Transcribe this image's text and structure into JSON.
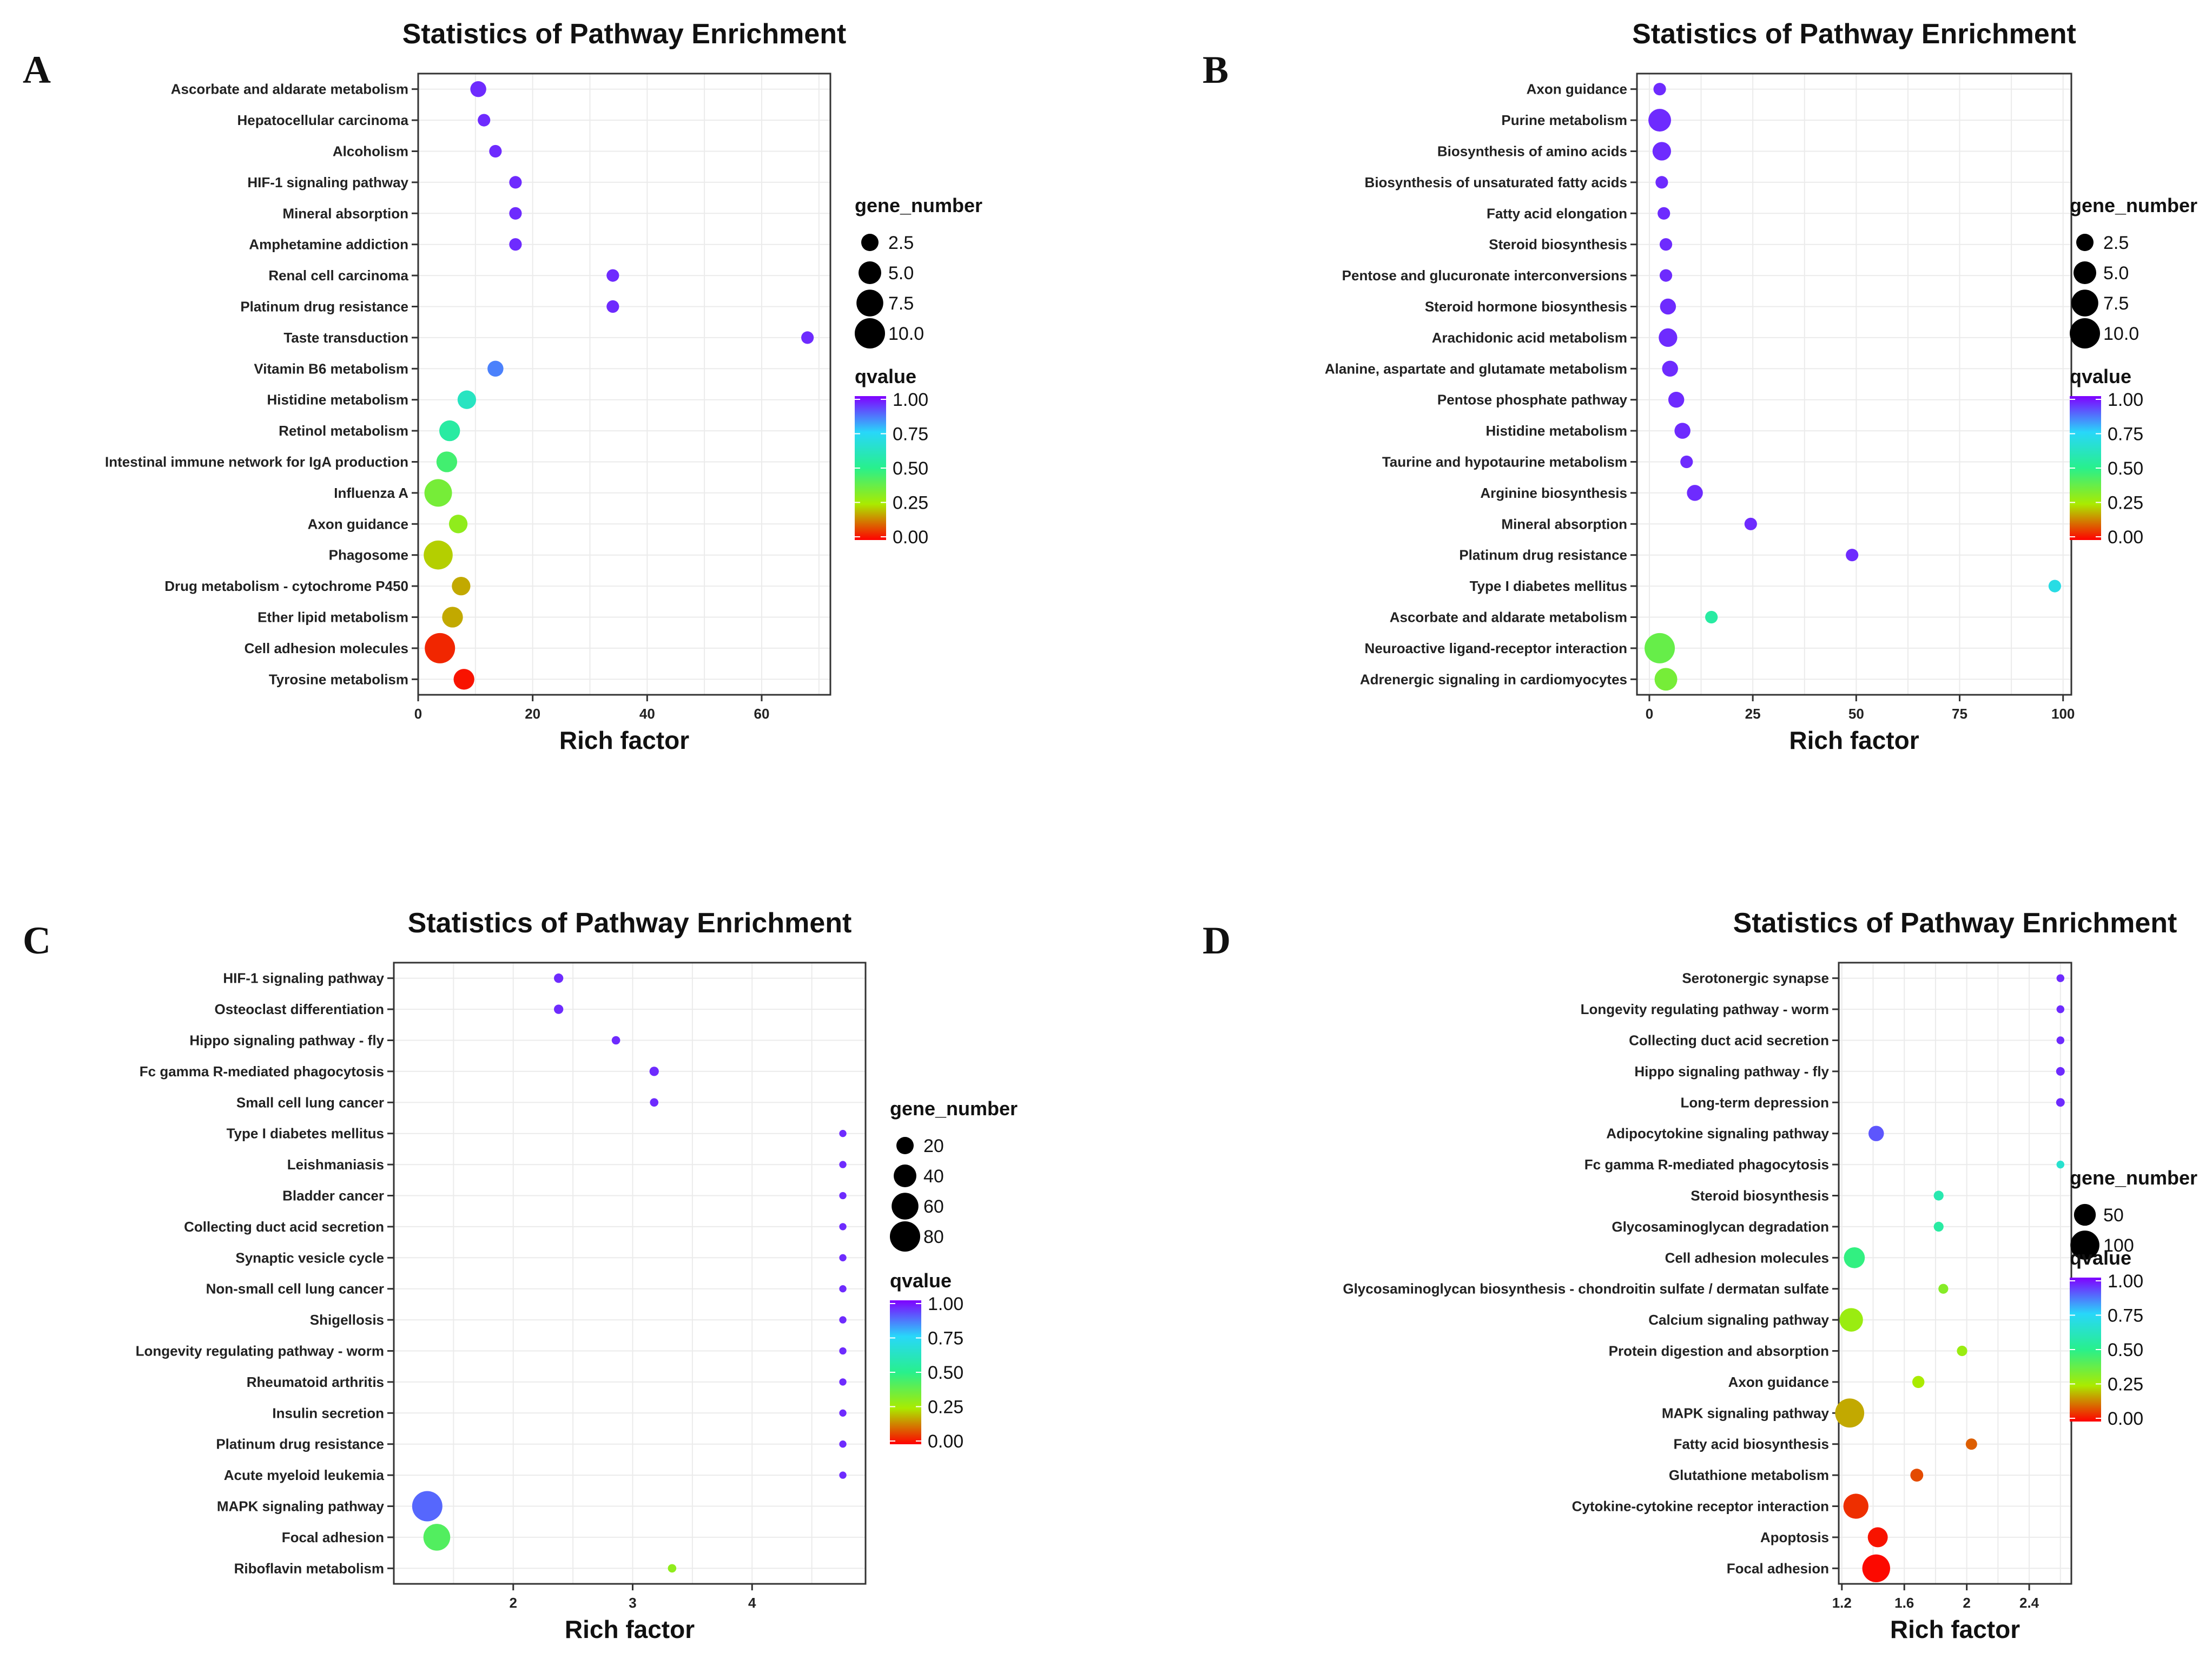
{
  "chart_data": [
    {
      "panel": "A",
      "type": "scatter",
      "title": "Statistics of Pathway Enrichment",
      "xlabel": "Rich factor",
      "ylabel": "",
      "xlim": [
        0,
        72
      ],
      "xticks": [
        0,
        20,
        40,
        60
      ],
      "size_legend_title": "gene_number",
      "size_legend": [
        2.5,
        5.0,
        7.5,
        10.0
      ],
      "size_legend_labels": [
        "2.5",
        "5.0",
        "7.5",
        "10.0"
      ],
      "size_max": 10,
      "color_legend_title": "qvalue",
      "color_legend_labels": [
        "1.00",
        "0.75",
        "0.50",
        "0.25",
        "0.00"
      ],
      "grid": true,
      "points": [
        {
          "pathway": "Ascorbate and aldarate metabolism",
          "rich_factor": 10.5,
          "gene_number": 2,
          "qvalue": 0.95
        },
        {
          "pathway": "Hepatocellular carcinoma",
          "rich_factor": 11.5,
          "gene_number": 1,
          "qvalue": 0.95
        },
        {
          "pathway": "Alcoholism",
          "rich_factor": 13.5,
          "gene_number": 1,
          "qvalue": 0.95
        },
        {
          "pathway": "HIF-1 signaling pathway",
          "rich_factor": 17.0,
          "gene_number": 1,
          "qvalue": 0.95
        },
        {
          "pathway": "Mineral absorption",
          "rich_factor": 17.0,
          "gene_number": 1,
          "qvalue": 0.95
        },
        {
          "pathway": "Amphetamine addiction",
          "rich_factor": 17.0,
          "gene_number": 1,
          "qvalue": 0.95
        },
        {
          "pathway": "Renal cell carcinoma",
          "rich_factor": 34.0,
          "gene_number": 1,
          "qvalue": 0.95
        },
        {
          "pathway": "Platinum drug resistance",
          "rich_factor": 34.0,
          "gene_number": 1,
          "qvalue": 0.95
        },
        {
          "pathway": "Taste transduction",
          "rich_factor": 68.0,
          "gene_number": 1,
          "qvalue": 0.95
        },
        {
          "pathway": "Vitamin B6 metabolism",
          "rich_factor": 13.5,
          "gene_number": 2,
          "qvalue": 0.85
        },
        {
          "pathway": "Histidine metabolism",
          "rich_factor": 8.5,
          "gene_number": 3,
          "qvalue": 0.62
        },
        {
          "pathway": "Retinol metabolism",
          "rich_factor": 5.5,
          "gene_number": 4,
          "qvalue": 0.55
        },
        {
          "pathway": "Intestinal immune network for IgA production",
          "rich_factor": 5.0,
          "gene_number": 4,
          "qvalue": 0.45
        },
        {
          "pathway": "Influenza A",
          "rich_factor": 3.5,
          "gene_number": 8,
          "qvalue": 0.35
        },
        {
          "pathway": "Axon guidance",
          "rich_factor": 7.0,
          "gene_number": 3,
          "qvalue": 0.3
        },
        {
          "pathway": "Phagosome",
          "rich_factor": 3.5,
          "gene_number": 9,
          "qvalue": 0.22
        },
        {
          "pathway": "Drug metabolism - cytochrome P450",
          "rich_factor": 7.5,
          "gene_number": 3,
          "qvalue": 0.18
        },
        {
          "pathway": "Ether lipid metabolism",
          "rich_factor": 6.0,
          "gene_number": 4,
          "qvalue": 0.18
        },
        {
          "pathway": "Cell adhesion molecules",
          "rich_factor": 3.8,
          "gene_number": 10,
          "qvalue": 0.04
        },
        {
          "pathway": "Tyrosine metabolism",
          "rich_factor": 8.0,
          "gene_number": 4,
          "qvalue": 0.02
        }
      ]
    },
    {
      "panel": "B",
      "type": "scatter",
      "title": "Statistics of Pathway Enrichment",
      "xlabel": "Rich factor",
      "ylabel": "",
      "xlim": [
        -3,
        102
      ],
      "xticks": [
        0,
        25,
        50,
        75,
        100
      ],
      "size_legend_title": "gene_number",
      "size_legend": [
        2.5,
        5.0,
        7.5,
        10.0
      ],
      "size_legend_labels": [
        "2.5",
        "5.0",
        "7.5",
        "10.0"
      ],
      "size_max": 10,
      "color_legend_title": "qvalue",
      "color_legend_labels": [
        "1.00",
        "0.75",
        "0.50",
        "0.25",
        "0.00"
      ],
      "grid": true,
      "points": [
        {
          "pathway": "Axon guidance",
          "rich_factor": 2.5,
          "gene_number": 1,
          "qvalue": 0.95
        },
        {
          "pathway": "Purine metabolism",
          "rich_factor": 2.5,
          "gene_number": 5,
          "qvalue": 0.95
        },
        {
          "pathway": "Biosynthesis of amino acids",
          "rich_factor": 3.0,
          "gene_number": 3,
          "qvalue": 0.95
        },
        {
          "pathway": "Biosynthesis of unsaturated fatty acids",
          "rich_factor": 3.0,
          "gene_number": 1,
          "qvalue": 0.95
        },
        {
          "pathway": "Fatty acid elongation",
          "rich_factor": 3.5,
          "gene_number": 1,
          "qvalue": 0.95
        },
        {
          "pathway": "Steroid biosynthesis",
          "rich_factor": 4.0,
          "gene_number": 1,
          "qvalue": 0.95
        },
        {
          "pathway": "Pentose and glucuronate interconversions",
          "rich_factor": 4.0,
          "gene_number": 1,
          "qvalue": 0.95
        },
        {
          "pathway": "Steroid hormone biosynthesis",
          "rich_factor": 4.5,
          "gene_number": 2,
          "qvalue": 0.95
        },
        {
          "pathway": "Arachidonic acid metabolism",
          "rich_factor": 4.5,
          "gene_number": 3,
          "qvalue": 0.95
        },
        {
          "pathway": "Alanine, aspartate and glutamate metabolism",
          "rich_factor": 5.0,
          "gene_number": 2,
          "qvalue": 0.95
        },
        {
          "pathway": "Pentose phosphate pathway",
          "rich_factor": 6.5,
          "gene_number": 2,
          "qvalue": 0.95
        },
        {
          "pathway": "Histidine metabolism",
          "rich_factor": 8.0,
          "gene_number": 2,
          "qvalue": 0.95
        },
        {
          "pathway": "Taurine and hypotaurine metabolism",
          "rich_factor": 9.0,
          "gene_number": 1,
          "qvalue": 0.95
        },
        {
          "pathway": "Arginine biosynthesis",
          "rich_factor": 11.0,
          "gene_number": 2,
          "qvalue": 0.95
        },
        {
          "pathway": "Mineral absorption",
          "rich_factor": 24.5,
          "gene_number": 1,
          "qvalue": 0.95
        },
        {
          "pathway": "Platinum drug resistance",
          "rich_factor": 49.0,
          "gene_number": 1,
          "qvalue": 0.95
        },
        {
          "pathway": "Type I diabetes mellitus",
          "rich_factor": 98.0,
          "gene_number": 1,
          "qvalue": 0.7
        },
        {
          "pathway": "Ascorbate and aldarate metabolism",
          "rich_factor": 15.0,
          "gene_number": 1,
          "qvalue": 0.55
        },
        {
          "pathway": "Neuroactive ligand-receptor interaction",
          "rich_factor": 2.5,
          "gene_number": 10,
          "qvalue": 0.38
        },
        {
          "pathway": "Adrenergic signaling in cardiomyocytes",
          "rich_factor": 4.0,
          "gene_number": 5,
          "qvalue": 0.35
        }
      ]
    },
    {
      "panel": "C",
      "type": "scatter",
      "title": "Statistics of Pathway Enrichment",
      "xlabel": "Rich factor",
      "ylabel": "",
      "xlim": [
        1.0,
        4.95
      ],
      "xticks": [
        2,
        3,
        4
      ],
      "size_legend_title": "gene_number",
      "size_legend": [
        20,
        40,
        60,
        80
      ],
      "size_legend_labels": [
        "20",
        "40",
        "60",
        "80"
      ],
      "size_max": 80,
      "color_legend_title": "qvalue",
      "color_legend_labels": [
        "1.00",
        "0.75",
        "0.50",
        "0.25",
        "0.00"
      ],
      "grid": true,
      "points": [
        {
          "pathway": "HIF-1 signaling pathway",
          "rich_factor": 2.38,
          "gene_number": 3,
          "qvalue": 0.95
        },
        {
          "pathway": "Osteoclast differentiation",
          "rich_factor": 2.38,
          "gene_number": 3,
          "qvalue": 0.95
        },
        {
          "pathway": "Hippo signaling pathway - fly",
          "rich_factor": 2.86,
          "gene_number": 2,
          "qvalue": 0.95
        },
        {
          "pathway": "Fc gamma R-mediated phagocytosis",
          "rich_factor": 3.18,
          "gene_number": 3,
          "qvalue": 0.95
        },
        {
          "pathway": "Small cell lung cancer",
          "rich_factor": 3.18,
          "gene_number": 2,
          "qvalue": 0.95
        },
        {
          "pathway": "Type I diabetes mellitus",
          "rich_factor": 4.76,
          "gene_number": 1,
          "qvalue": 0.95
        },
        {
          "pathway": "Leishmaniasis",
          "rich_factor": 4.76,
          "gene_number": 1,
          "qvalue": 0.95
        },
        {
          "pathway": "Bladder cancer",
          "rich_factor": 4.76,
          "gene_number": 1,
          "qvalue": 0.95
        },
        {
          "pathway": "Collecting duct acid secretion",
          "rich_factor": 4.76,
          "gene_number": 1,
          "qvalue": 0.95
        },
        {
          "pathway": "Synaptic vesicle cycle",
          "rich_factor": 4.76,
          "gene_number": 1,
          "qvalue": 0.95
        },
        {
          "pathway": "Non-small cell lung cancer",
          "rich_factor": 4.76,
          "gene_number": 1,
          "qvalue": 0.95
        },
        {
          "pathway": "Shigellosis",
          "rich_factor": 4.76,
          "gene_number": 1,
          "qvalue": 0.95
        },
        {
          "pathway": "Longevity regulating pathway - worm",
          "rich_factor": 4.76,
          "gene_number": 1,
          "qvalue": 0.95
        },
        {
          "pathway": "Rheumatoid arthritis",
          "rich_factor": 4.76,
          "gene_number": 1,
          "qvalue": 0.95
        },
        {
          "pathway": "Insulin secretion",
          "rich_factor": 4.76,
          "gene_number": 1,
          "qvalue": 0.95
        },
        {
          "pathway": "Platinum drug resistance",
          "rich_factor": 4.76,
          "gene_number": 1,
          "qvalue": 0.95
        },
        {
          "pathway": "Acute myeloid leukemia",
          "rich_factor": 4.76,
          "gene_number": 1,
          "qvalue": 0.95
        },
        {
          "pathway": "MAPK signaling pathway",
          "rich_factor": 1.28,
          "gene_number": 80,
          "qvalue": 0.88
        },
        {
          "pathway": "Focal adhesion",
          "rich_factor": 1.36,
          "gene_number": 60,
          "qvalue": 0.42
        },
        {
          "pathway": "Riboflavin metabolism",
          "rich_factor": 3.33,
          "gene_number": 2,
          "qvalue": 0.3
        }
      ]
    },
    {
      "panel": "D",
      "type": "scatter",
      "title": "Statistics of Pathway Enrichment",
      "xlabel": "Rich factor",
      "ylabel": "",
      "xlim": [
        1.18,
        2.67
      ],
      "xticks": [
        1.2,
        1.6,
        2.0,
        2.4
      ],
      "size_legend_title": "gene_number",
      "size_legend": [
        50,
        100
      ],
      "size_legend_labels": [
        "50",
        "100"
      ],
      "size_max": 110,
      "color_legend_title": "qvalue",
      "color_legend_labels": [
        "1.00",
        "0.75",
        "0.50",
        "0.25",
        "0.00"
      ],
      "grid": true,
      "points": [
        {
          "pathway": "Serotonergic synapse",
          "rich_factor": 2.6,
          "gene_number": 2,
          "qvalue": 0.95
        },
        {
          "pathway": "Longevity regulating pathway - worm",
          "rich_factor": 2.6,
          "gene_number": 2,
          "qvalue": 0.95
        },
        {
          "pathway": "Collecting duct acid secretion",
          "rich_factor": 2.6,
          "gene_number": 2,
          "qvalue": 0.95
        },
        {
          "pathway": "Hippo signaling pathway - fly",
          "rich_factor": 2.6,
          "gene_number": 3,
          "qvalue": 0.95
        },
        {
          "pathway": "Long-term depression",
          "rich_factor": 2.6,
          "gene_number": 3,
          "qvalue": 0.95
        },
        {
          "pathway": "Adipocytokine signaling pathway",
          "rich_factor": 1.42,
          "gene_number": 20,
          "qvalue": 0.9
        },
        {
          "pathway": "Fc gamma R-mediated phagocytosis",
          "rich_factor": 2.6,
          "gene_number": 2,
          "qvalue": 0.65
        },
        {
          "pathway": "Steroid biosynthesis",
          "rich_factor": 1.82,
          "gene_number": 5,
          "qvalue": 0.58
        },
        {
          "pathway": "Glycosaminoglycan degradation",
          "rich_factor": 1.82,
          "gene_number": 5,
          "qvalue": 0.55
        },
        {
          "pathway": "Cell adhesion molecules",
          "rich_factor": 1.28,
          "gene_number": 45,
          "qvalue": 0.48
        },
        {
          "pathway": "Glycosaminoglycan biosynthesis - chondroitin sulfate / dermatan sulfate",
          "rich_factor": 1.85,
          "gene_number": 5,
          "qvalue": 0.32
        },
        {
          "pathway": "Calcium signaling pathway",
          "rich_factor": 1.26,
          "gene_number": 60,
          "qvalue": 0.28
        },
        {
          "pathway": "Protein digestion and absorption",
          "rich_factor": 1.97,
          "gene_number": 6,
          "qvalue": 0.28
        },
        {
          "pathway": "Axon guidance",
          "rich_factor": 1.69,
          "gene_number": 10,
          "qvalue": 0.25
        },
        {
          "pathway": "MAPK signaling pathway",
          "rich_factor": 1.25,
          "gene_number": 100,
          "qvalue": 0.18
        },
        {
          "pathway": "Fatty acid biosynthesis",
          "rich_factor": 2.03,
          "gene_number": 8,
          "qvalue": 0.1
        },
        {
          "pathway": "Glutathione metabolism",
          "rich_factor": 1.68,
          "gene_number": 12,
          "qvalue": 0.08
        },
        {
          "pathway": "Cytokine-cytokine receptor interaction",
          "rich_factor": 1.29,
          "gene_number": 70,
          "qvalue": 0.05
        },
        {
          "pathway": "Apoptosis",
          "rich_factor": 1.43,
          "gene_number": 40,
          "qvalue": 0.02
        },
        {
          "pathway": "Focal adhesion",
          "rich_factor": 1.42,
          "gene_number": 90,
          "qvalue": 0.01
        }
      ]
    }
  ]
}
